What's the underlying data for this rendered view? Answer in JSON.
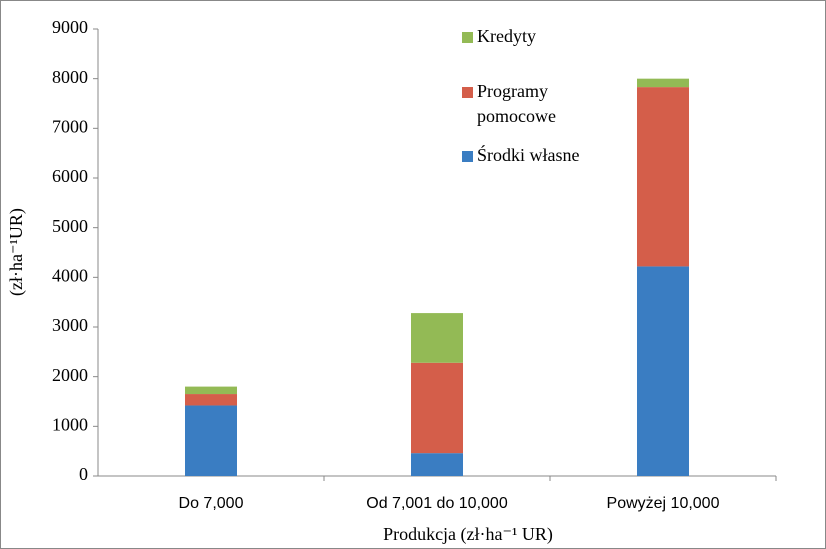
{
  "chart_data": {
    "type": "stacked_bar",
    "y_label": "(zł·ha⁻¹UR)",
    "x_label": "Produkcja  (zł·ha⁻¹ UR)",
    "categories": [
      "Do 7,000",
      "Od 7,001 do 10,000",
      "Powyżej 10,000"
    ],
    "series": [
      {
        "name": "Środki własne",
        "color": "#3a7dc2",
        "values": [
          1420,
          460,
          4220
        ]
      },
      {
        "name": "Programy pomocowe",
        "color": "#d45e4a",
        "values": [
          230,
          1820,
          3610
        ]
      },
      {
        "name": "Kredyty",
        "color": "#93ba55",
        "values": [
          150,
          1000,
          170
        ]
      }
    ],
    "ylim": [
      0,
      9000
    ],
    "yticks": [
      0,
      1000,
      2000,
      3000,
      4000,
      5000,
      6000,
      7000,
      8000,
      9000
    ],
    "grid": false
  }
}
